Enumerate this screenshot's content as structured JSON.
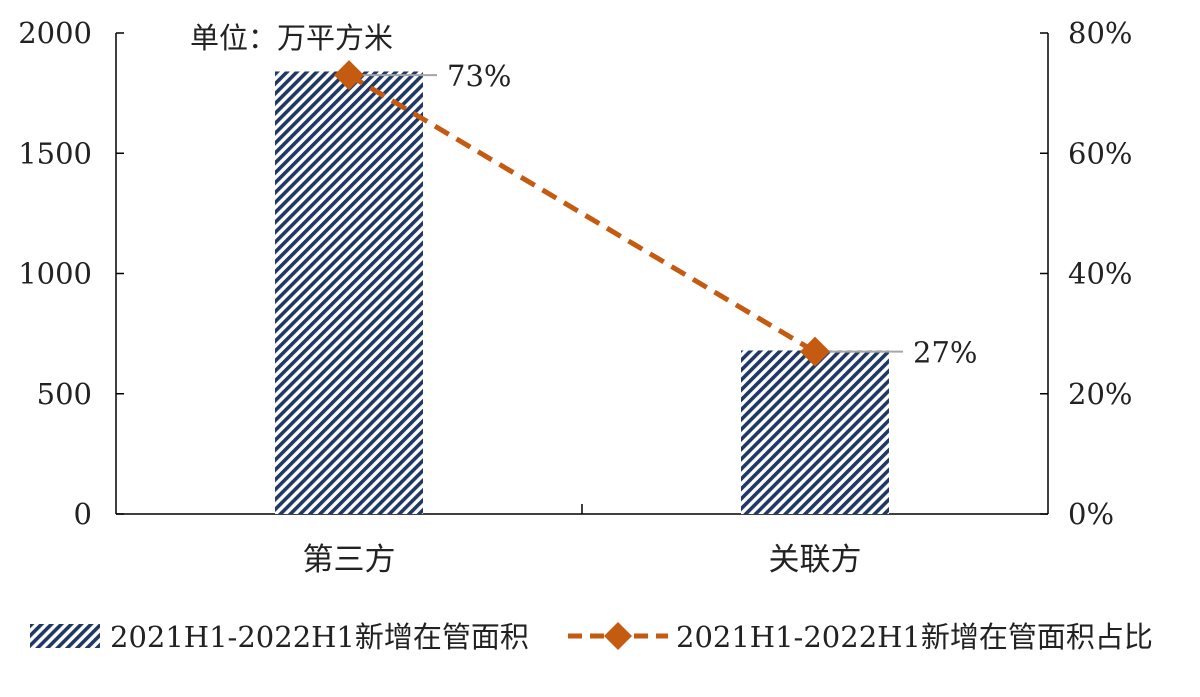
{
  "chart_data": {
    "type": "bar",
    "unit_label": "单位：万平方米",
    "categories": [
      "第三方",
      "关联方"
    ],
    "series": [
      {
        "name": "2021H1-2022H1新增在管面积",
        "type": "bar",
        "axis": "left",
        "values": [
          1840,
          680
        ],
        "color": "#1f3864",
        "pattern": "diagonal-stripes"
      },
      {
        "name": "2021H1-2022H1新增在管面积占比",
        "type": "line",
        "axis": "right",
        "values": [
          73,
          27
        ],
        "color": "#c55a11",
        "marker": "diamond",
        "line_style": "dashed"
      }
    ],
    "data_labels": [
      "73%",
      "27%"
    ],
    "y_left": {
      "ylim": [
        0,
        2000
      ],
      "ticks": [
        "0",
        "500",
        "1000",
        "1500",
        "2000"
      ]
    },
    "y_right": {
      "ylim": [
        0,
        80
      ],
      "ticks": [
        "0%",
        "20%",
        "40%",
        "60%",
        "80%"
      ]
    },
    "legend_position": "bottom",
    "grid": false
  }
}
